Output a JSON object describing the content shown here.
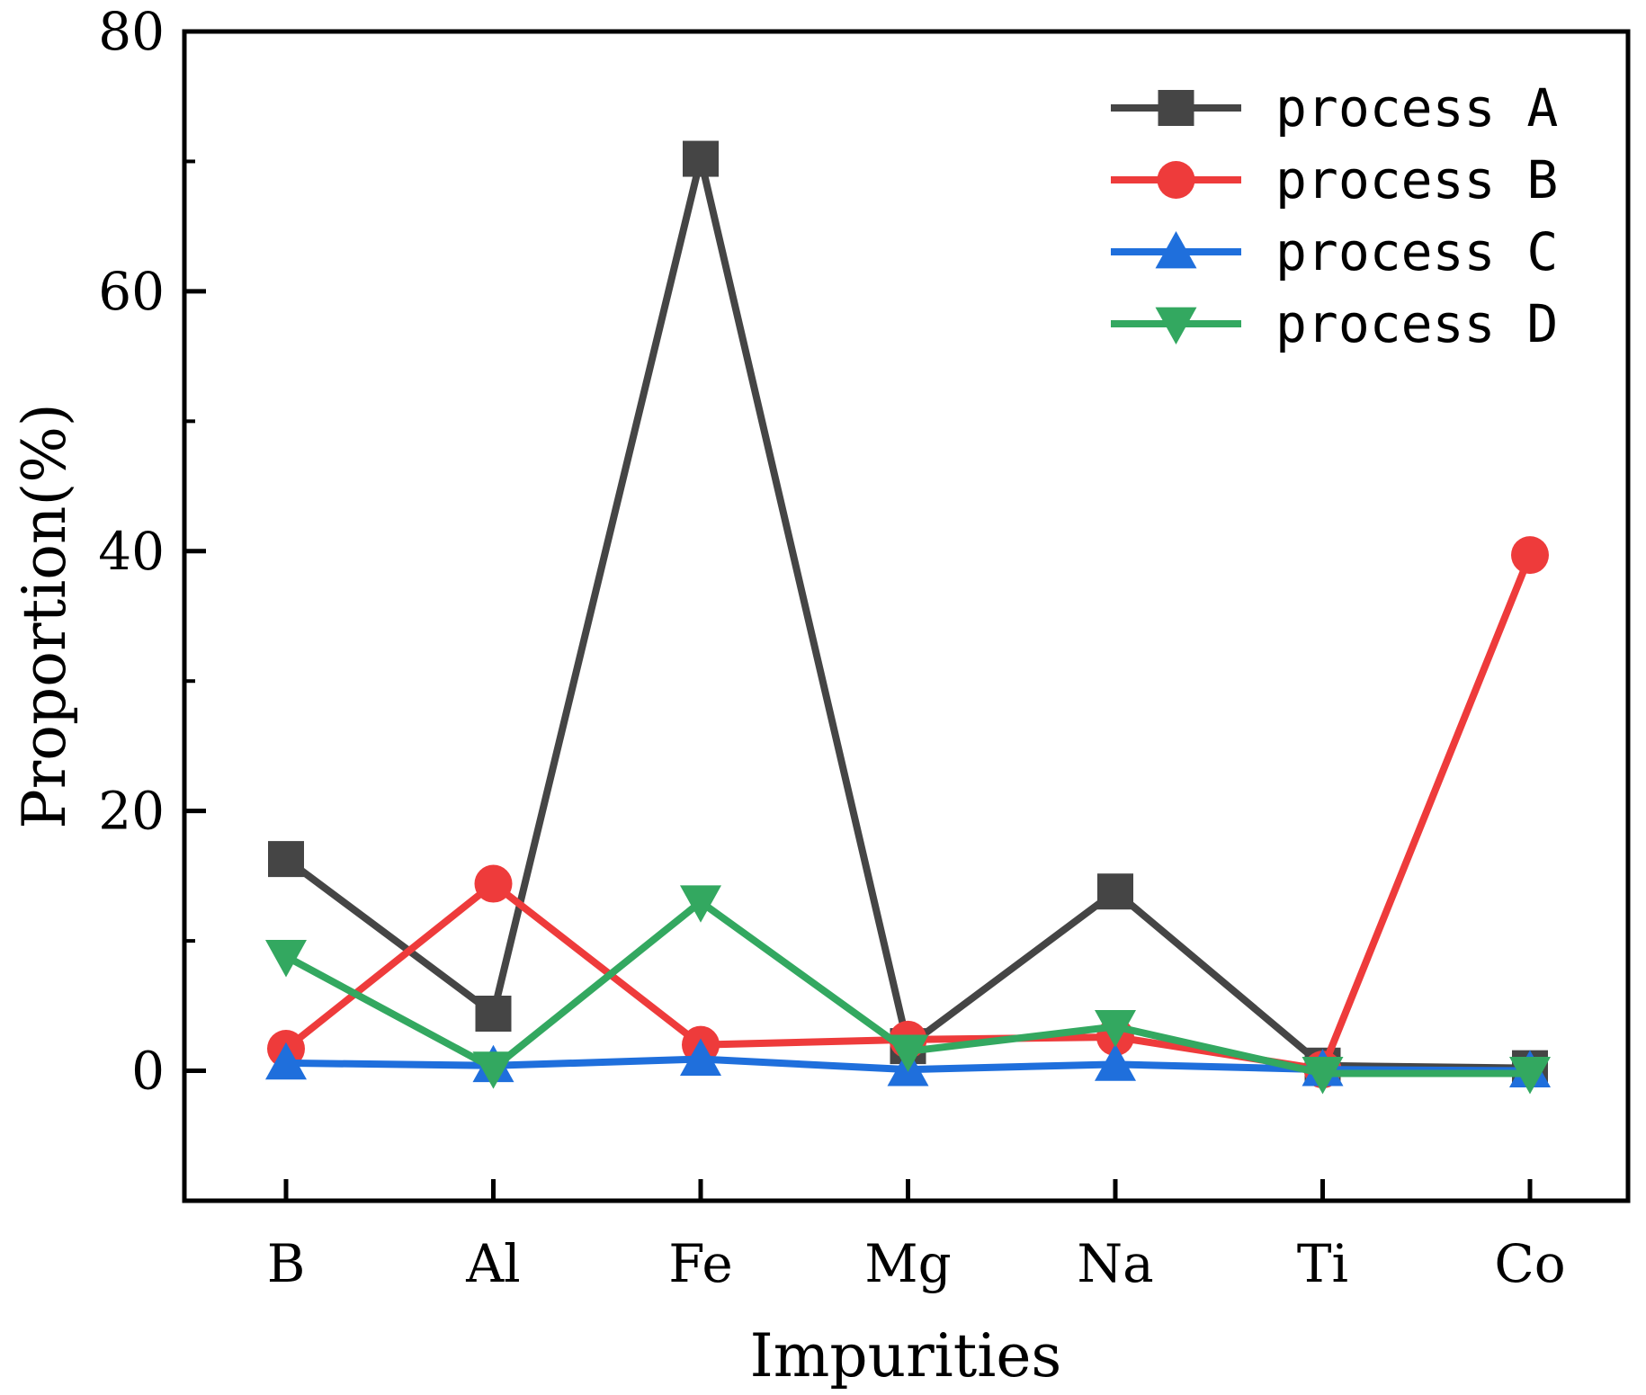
{
  "chart_data": {
    "type": "line",
    "title": "",
    "xlabel": "Impurities",
    "ylabel": "Proportion(%)",
    "categories": [
      "B",
      "Al",
      "Fe",
      "Mg",
      "Na",
      "Ti",
      "Co"
    ],
    "ylim": [
      -10,
      80
    ],
    "yticks": [
      0,
      20,
      40,
      60,
      80
    ],
    "grid": false,
    "legend_position": "top-right",
    "series": [
      {
        "name": "process A",
        "color": "#454545",
        "marker": "square",
        "values": [
          16.3,
          4.4,
          70.2,
          1.9,
          13.8,
          0.4,
          0.2
        ]
      },
      {
        "name": "process B",
        "color": "#ee3b3b",
        "marker": "circle",
        "values": [
          1.7,
          14.4,
          2.0,
          2.4,
          2.6,
          0.1,
          39.7
        ]
      },
      {
        "name": "process C",
        "color": "#1f6fdc",
        "marker": "triangle-up",
        "values": [
          0.6,
          0.4,
          0.9,
          0.1,
          0.5,
          0.1,
          0.0
        ]
      },
      {
        "name": "process D",
        "color": "#33a860",
        "marker": "triangle-down",
        "values": [
          8.8,
          0.2,
          13.0,
          1.5,
          3.4,
          -0.2,
          -0.2
        ]
      }
    ]
  }
}
